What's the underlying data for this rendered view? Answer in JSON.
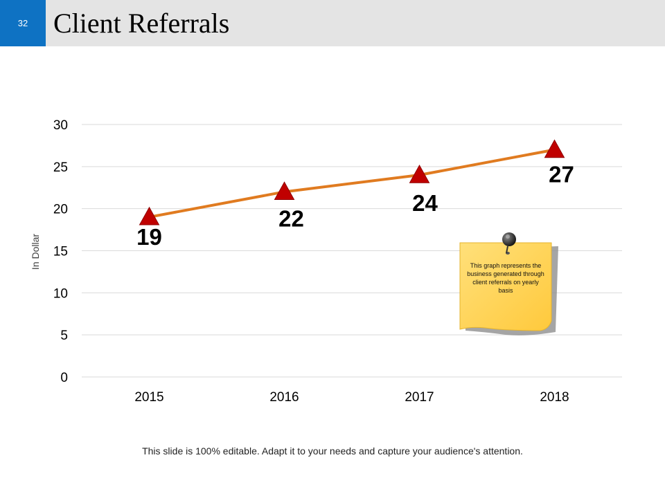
{
  "slide": {
    "number": "32",
    "title": "Client Referrals",
    "footer": "This slide is 100% editable. Adapt it to your needs and capture your audience's attention."
  },
  "colors": {
    "line": "#E07B20",
    "marker": "#C00000",
    "header_bg": "#E4E4E4",
    "slide_number_bg": "#0E72C3",
    "note_fill": "#FFD95A",
    "gridline": "#D9D9D9"
  },
  "note": {
    "text": "This graph represents the business generated through client referrals on yearly basis",
    "icon": "pushpin-icon"
  },
  "chart_data": {
    "type": "line",
    "title": "Client Referrals",
    "xlabel": "",
    "ylabel": "In Dollar",
    "categories": [
      "2015",
      "2016",
      "2017",
      "2018"
    ],
    "series": [
      {
        "name": "Client Referrals",
        "values": [
          19,
          22,
          24,
          27
        ]
      }
    ],
    "ylim": [
      0,
      30
    ],
    "yticks": [
      0,
      5,
      10,
      15,
      20,
      25,
      30
    ],
    "grid": true,
    "marker": "triangle",
    "data_labels": [
      "19",
      "22",
      "24",
      "27"
    ]
  }
}
